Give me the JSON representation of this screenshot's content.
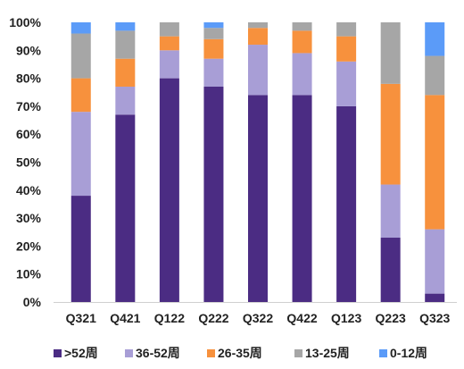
{
  "chart_data": {
    "type": "bar",
    "stacked": true,
    "percent": true,
    "categories": [
      "Q321",
      "Q421",
      "Q122",
      "Q222",
      "Q322",
      "Q422",
      "Q123",
      "Q223",
      "Q323"
    ],
    "y_ticks": [
      "0%",
      "10%",
      "20%",
      "30%",
      "40%",
      "50%",
      "60%",
      "70%",
      "80%",
      "90%",
      "100%"
    ],
    "ylim": [
      0,
      100
    ],
    "grid": false,
    "legend_position": "bottom",
    "series": [
      {
        "name": ">52周",
        "color": "#4B2C83",
        "values": [
          38,
          67,
          80,
          77,
          74,
          74,
          70,
          23,
          3
        ]
      },
      {
        "name": "36-52周",
        "color": "#A89ED6",
        "values": [
          30,
          10,
          10,
          10,
          18,
          15,
          16,
          19,
          23
        ]
      },
      {
        "name": "26-35周",
        "color": "#F7913D",
        "values": [
          12,
          10,
          5,
          7,
          6,
          8,
          9,
          36,
          48
        ]
      },
      {
        "name": "13-25周",
        "color": "#A6A6A6",
        "values": [
          16,
          10,
          5,
          4,
          2,
          3,
          5,
          22,
          14
        ]
      },
      {
        "name": "0-12周",
        "color": "#5B9BF8",
        "values": [
          4,
          3,
          0,
          2,
          0,
          0,
          0,
          0,
          12
        ]
      }
    ]
  }
}
